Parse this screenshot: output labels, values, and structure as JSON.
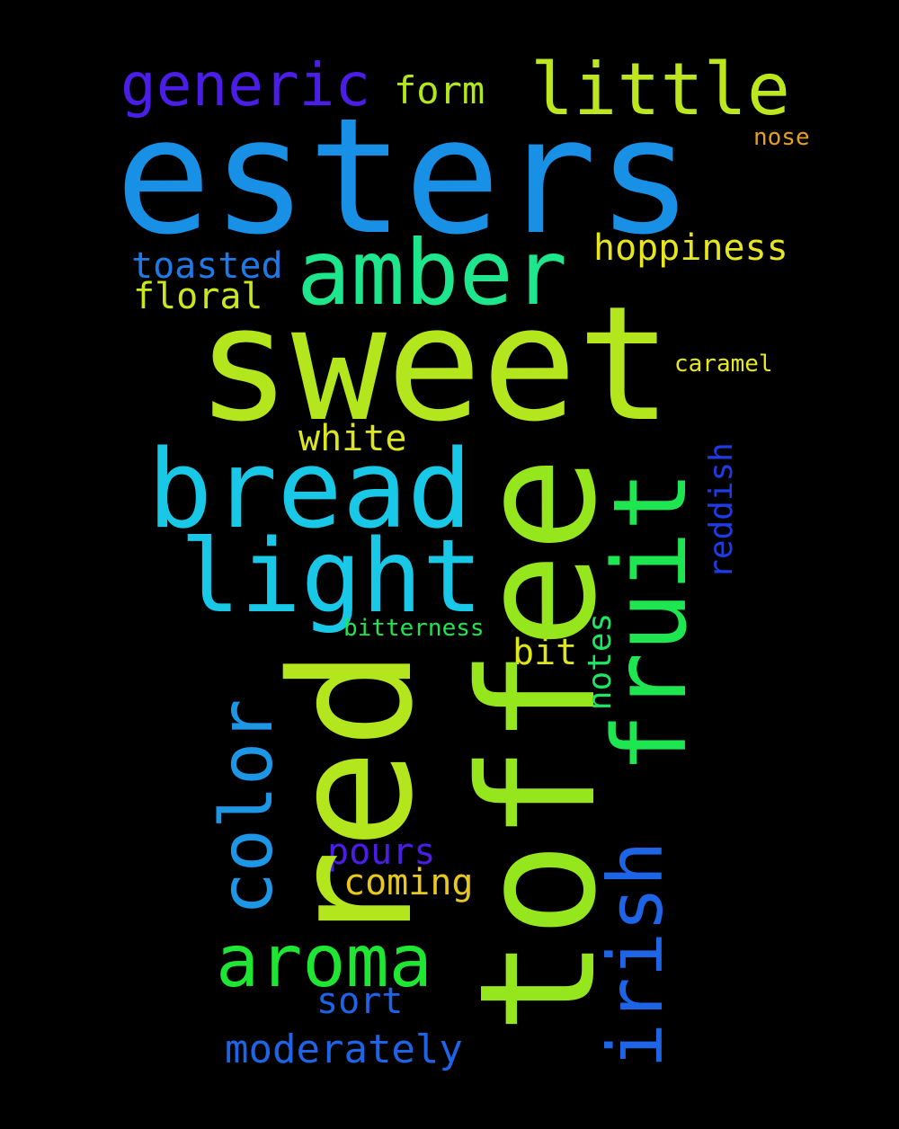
{
  "words": {
    "esters": "esters",
    "sweet": "sweet",
    "toffee": "toffee",
    "red": "red",
    "fruit": "fruit",
    "bread": "bread",
    "amber": "amber",
    "light": "light",
    "irish": "irish",
    "color": "color",
    "aroma": "aroma",
    "little": "little",
    "generic": "generic",
    "hoppiness": "hoppiness",
    "toasted": "toasted",
    "floral": "floral",
    "form": "form",
    "nose": "nose",
    "caramel": "caramel",
    "white": "white",
    "reddish": "reddish",
    "bitterness": "bitterness",
    "bit": "bit",
    "notes": "notes",
    "pours": "pours",
    "coming": "coming",
    "sort": "sort",
    "moderately": "moderately"
  },
  "colors": {
    "background": "#000000"
  }
}
